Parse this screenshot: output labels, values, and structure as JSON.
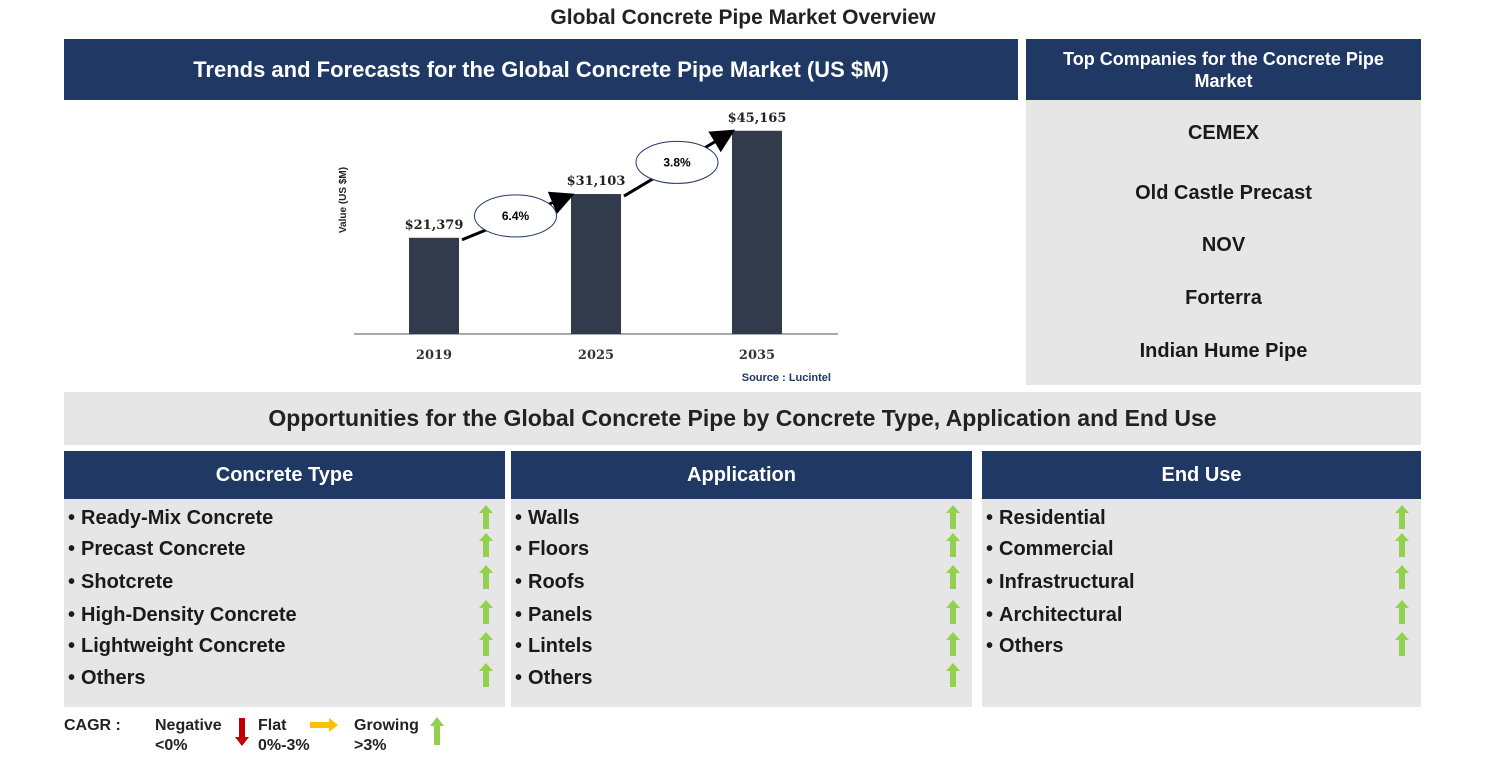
{
  "title": "Global Concrete Pipe Market Overview",
  "trend_panel_title": "Trends and Forecasts for the Global Concrete Pipe Market (US $M)",
  "chart_data": {
    "type": "bar",
    "categories": [
      "2019",
      "2025",
      "2035"
    ],
    "values": [
      21379,
      31103,
      45165
    ],
    "data_labels": [
      "$21,379",
      "$31,103",
      "$45,165"
    ],
    "ylabel": "Value (US $M)",
    "xlabel": "",
    "ylim": [
      0,
      48000
    ],
    "grid": false,
    "cagr_annotations": [
      {
        "from": "2019",
        "to": "2025",
        "label": "6.4%"
      },
      {
        "from": "2025",
        "to": "2035",
        "label": "3.8%"
      }
    ],
    "source": "Source : Lucintel",
    "bar_color": "#323b4c"
  },
  "companies": {
    "title": "Top Companies for the Concrete Pipe Market",
    "items": [
      "CEMEX",
      "Old Castle Precast",
      "NOV",
      "Forterra",
      "Indian Hume Pipe"
    ]
  },
  "opportunities_title": "Opportunities for the Global Concrete Pipe by Concrete Type, Application and End Use",
  "segments": [
    {
      "title": "Concrete Type",
      "items": [
        "Ready-Mix Concrete",
        "Precast Concrete",
        "Shotcrete",
        "High-Density Concrete",
        "Lightweight Concrete",
        "Others"
      ]
    },
    {
      "title": "Application",
      "items": [
        "Walls",
        "Floors",
        "Roofs",
        "Panels",
        "Lintels",
        "Others"
      ]
    },
    {
      "title": "End Use",
      "items": [
        "Residential",
        "Commercial",
        "Infrastructural",
        "Architectural",
        "Others"
      ]
    }
  ],
  "legend": {
    "label": "CAGR :",
    "negative": "Negative",
    "negative_range": "<0%",
    "flat": "Flat",
    "flat_range": "0%-3%",
    "growing": "Growing",
    "growing_range": ">3%"
  },
  "colors": {
    "header_navy": "#1f3864",
    "panel_gray": "#e6e6e6",
    "growing_green": "#92d050",
    "negative_red": "#c00000",
    "flat_yellow": "#ffc000"
  }
}
